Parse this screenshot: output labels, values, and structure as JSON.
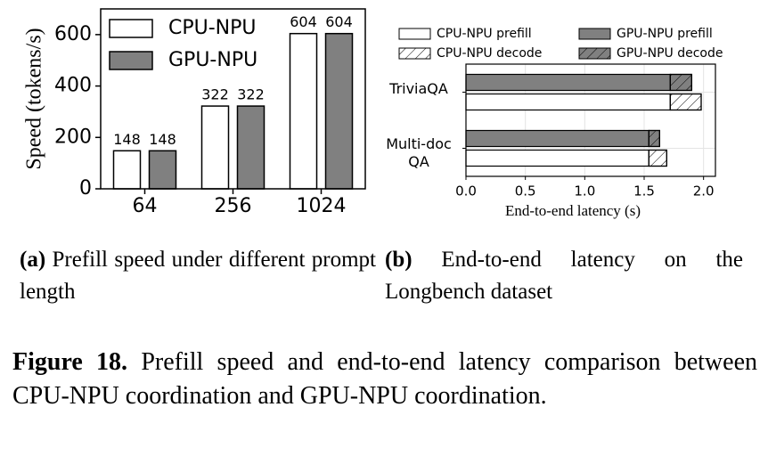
{
  "chart_data": [
    {
      "type": "bar",
      "ylabel": "Speed (tokens/s)",
      "categories": [
        "64",
        "256",
        "1024"
      ],
      "series": [
        {
          "name": "CPU-NPU",
          "color": "#ffffff",
          "values": [
            148,
            322,
            604
          ]
        },
        {
          "name": "GPU-NPU",
          "color": "#808080",
          "values": [
            148,
            322,
            604
          ]
        }
      ],
      "ylim": [
        0,
        700
      ],
      "yticks": [
        0,
        200,
        400,
        600
      ],
      "legend": "upper left",
      "data_labels": true
    },
    {
      "type": "barh",
      "xlabel": "End-to-end latency (s)",
      "categories": [
        "TriviaQA",
        "Multi-doc QA"
      ],
      "series": [
        {
          "name": "CPU-NPU prefill",
          "color": "#ffffff",
          "hatch": false,
          "values": [
            1.72,
            1.54
          ]
        },
        {
          "name": "CPU-NPU decode",
          "color": "#ffffff",
          "hatch": true,
          "values": [
            0.26,
            0.15
          ]
        },
        {
          "name": "GPU-NPU prefill",
          "color": "#808080",
          "hatch": false,
          "values": [
            1.72,
            1.54
          ]
        },
        {
          "name": "GPU-NPU decode",
          "color": "#808080",
          "hatch": true,
          "values": [
            0.18,
            0.09
          ]
        }
      ],
      "xlim": [
        0,
        2.1
      ],
      "xticks": [
        {
          "value": 0,
          "label": "0.0"
        },
        {
          "value": 0.5,
          "label": "0.5"
        },
        {
          "value": 1,
          "label": "1.0"
        },
        {
          "value": 1.5,
          "label": "1.5"
        },
        {
          "value": 2,
          "label": "2.0"
        }
      ],
      "grid": true,
      "legend": "above"
    }
  ],
  "subcaptions": [
    {
      "label": "(a)",
      "text": "Prefill speed under different prompt length"
    },
    {
      "label": "(b)",
      "text": "End-to-end latency on the Longbench dataset"
    }
  ],
  "caption": {
    "label": "Figure 18.",
    "text": "Prefill speed and end-to-end latency comparison between CPU-NPU coordination and GPU-NPU coordination."
  }
}
